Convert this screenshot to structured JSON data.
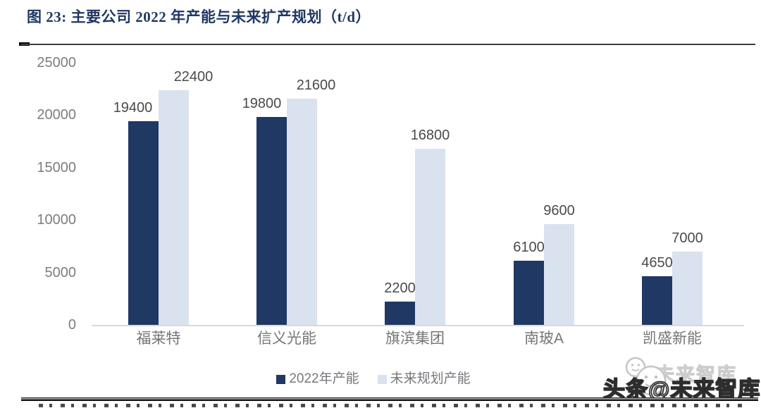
{
  "title": "图 23:  主要公司 2022 年产能与未来扩产规划（t/d）",
  "chart_data": {
    "type": "bar",
    "title": "主要公司 2022 年产能与未来扩产规划（t/d）",
    "categories": [
      "福莱特",
      "信义光能",
      "旗滨集团",
      "南玻A",
      "凯盛新能"
    ],
    "series": [
      {
        "name": "2022年产能",
        "color": "#1F3864",
        "values": [
          19400,
          19800,
          2200,
          6100,
          4650
        ]
      },
      {
        "name": "未来规划产能",
        "color": "#DAE2F0",
        "values": [
          22400,
          21600,
          16800,
          9600,
          7000
        ]
      }
    ],
    "xlabel": "",
    "ylabel": "",
    "ylim": [
      0,
      25000
    ],
    "ytick_step": 5000,
    "yticks": [
      "0",
      "5000",
      "10000",
      "15000",
      "20000",
      "25000"
    ],
    "grid": false,
    "legend_position": "bottom",
    "data_labels": true
  },
  "watermark": {
    "main": "头条@未来智库",
    "ghost": "未来智库",
    "logo": "smiley-faces-icon"
  },
  "colors": {
    "title": "#1F3864",
    "series_dark": "#1F3864",
    "series_light": "#DAE2F0",
    "axis_line": "#D9D9D9",
    "tick_text": "#7D7D7D",
    "value_text": "#4A4A4A"
  }
}
